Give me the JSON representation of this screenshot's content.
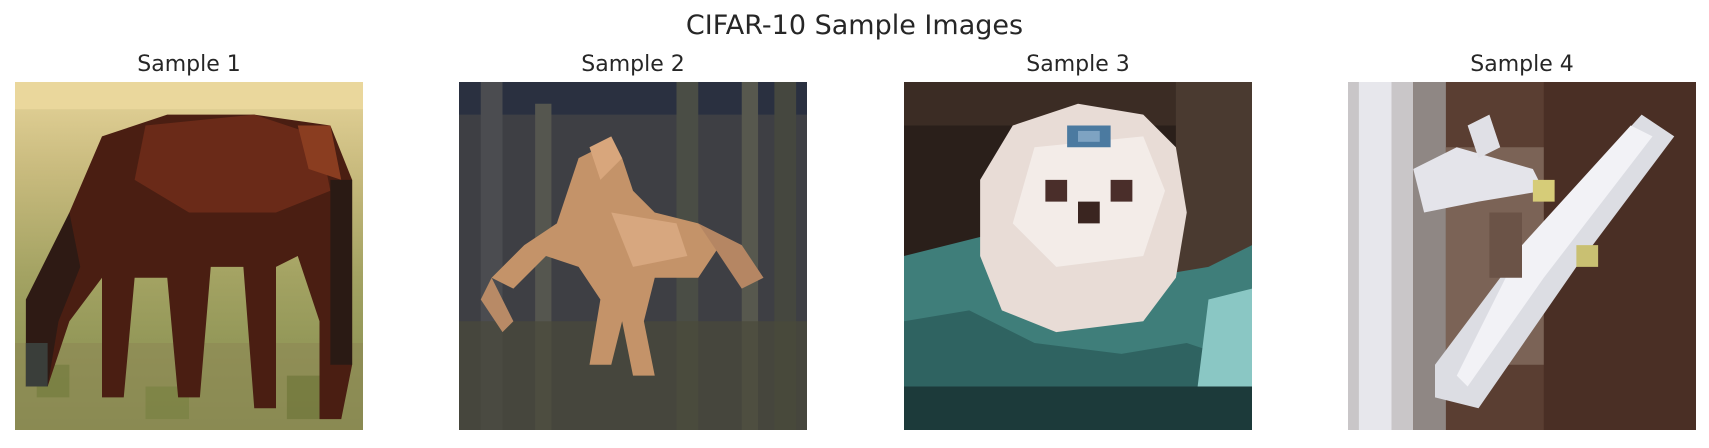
{
  "figure": {
    "title": "CIFAR-10 Sample Images"
  },
  "samples": [
    {
      "title": "Sample 1",
      "subject": "horse-grazing"
    },
    {
      "title": "Sample 2",
      "subject": "horse-rearing"
    },
    {
      "title": "Sample 3",
      "subject": "white-dog-on-teal"
    },
    {
      "title": "Sample 4",
      "subject": "toy-airplane"
    }
  ],
  "colors": {
    "text": "#262626",
    "background": "#ffffff"
  }
}
